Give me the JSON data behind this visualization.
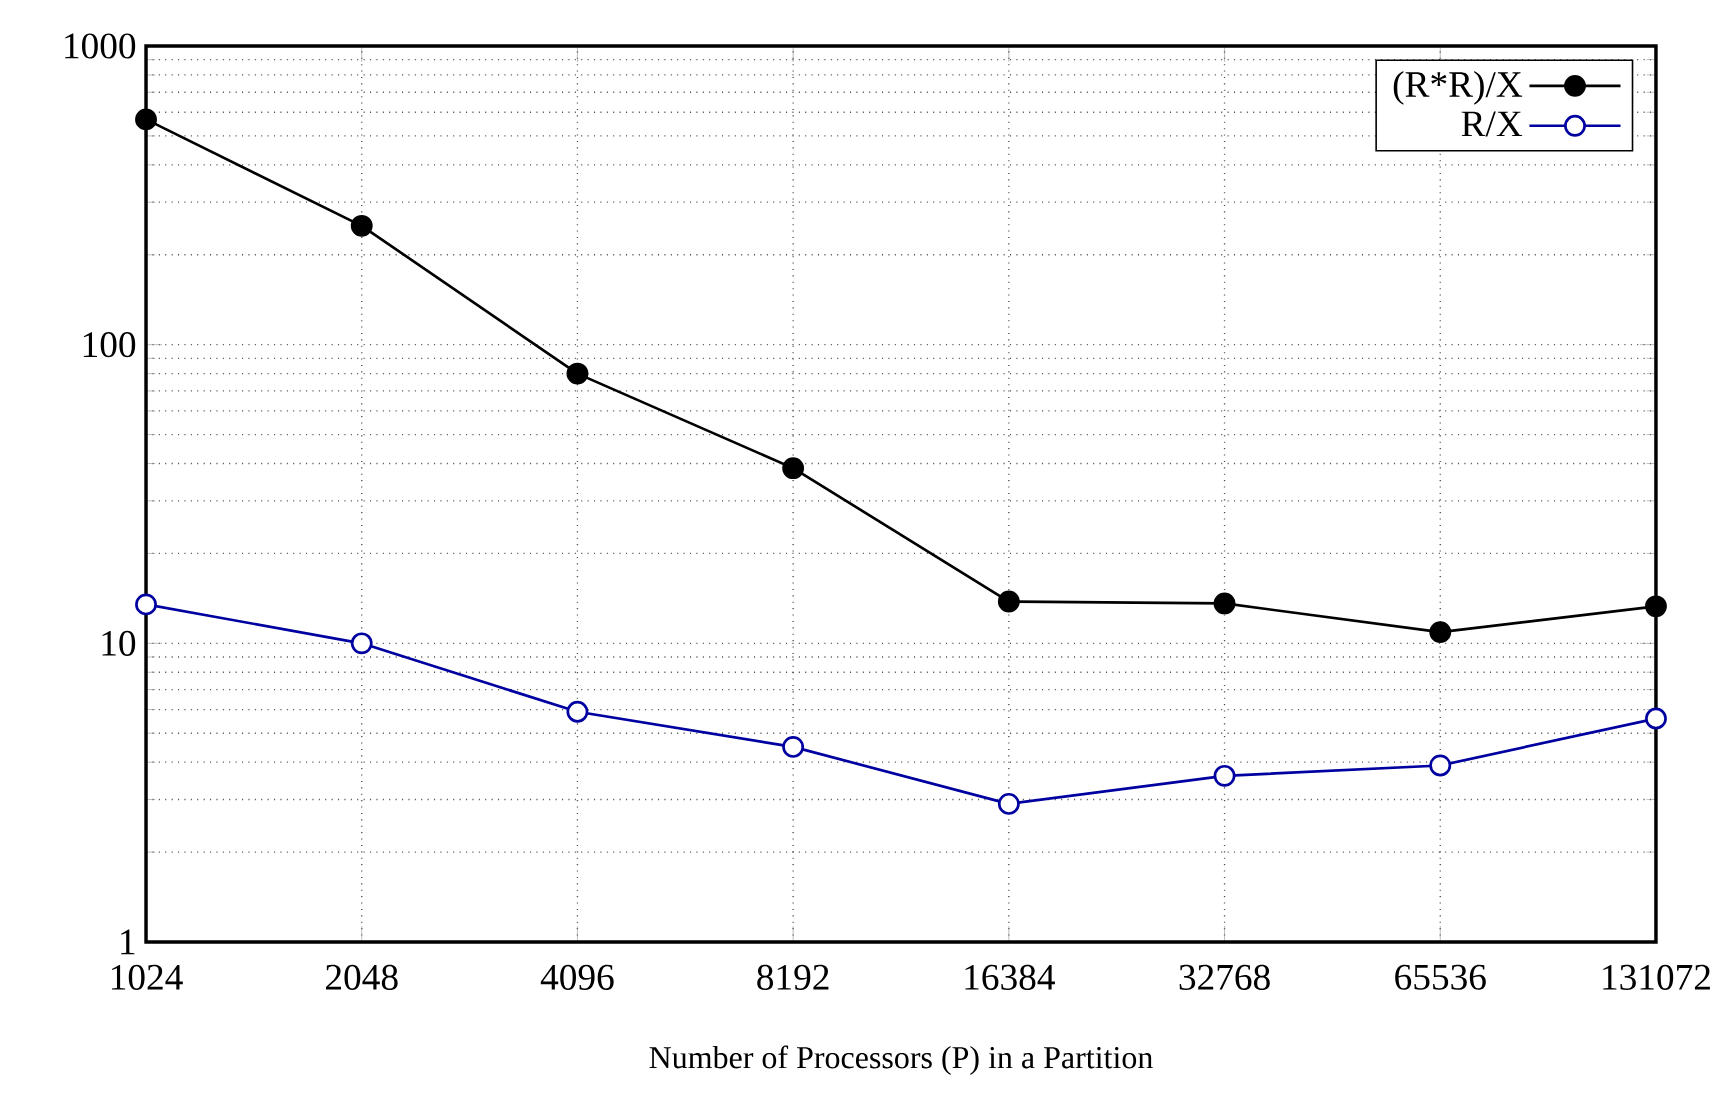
{
  "chart_data": {
    "type": "line",
    "xlabel": "Number of Processors (P) in a Partition",
    "categories": [
      "1024",
      "2048",
      "4096",
      "8192",
      "16384",
      "32768",
      "65536",
      "131072"
    ],
    "series": [
      {
        "name": "(R*R)/X",
        "color": "#000000",
        "values": [
          568,
          250,
          80,
          38.6,
          13.8,
          13.6,
          10.9,
          13.3
        ]
      },
      {
        "name": "R/X",
        "color": "#0000a0",
        "values": [
          13.5,
          10,
          5.9,
          4.5,
          2.9,
          3.6,
          3.9,
          5.6
        ]
      }
    ],
    "ylim": [
      1,
      1000
    ],
    "yticks": [
      1,
      10,
      100,
      1000
    ],
    "log": "y",
    "grid": true,
    "legend": "top right",
    "marker": "circle",
    "line_style": "solid"
  }
}
